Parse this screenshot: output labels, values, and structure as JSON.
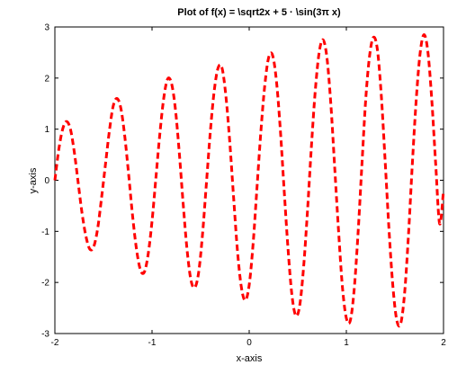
{
  "chart_data": {
    "type": "line",
    "title": "Plot of f(x) = \\sqrt2x + 5 · \\sin(3π x)",
    "xlabel": "x-axis",
    "ylabel": "y-axis",
    "xlim": [
      -2,
      2
    ],
    "ylim": [
      -3,
      3
    ],
    "x_ticks": [
      -2,
      -1,
      0,
      1,
      2
    ],
    "x_tick_labels": [
      "-2",
      "-1",
      "0",
      "1",
      "2"
    ],
    "y_ticks": [
      -3,
      -2,
      -1,
      0,
      1,
      2,
      3
    ],
    "y_tick_labels": [
      "-3",
      "-2",
      "-1",
      "0",
      "1",
      "2",
      "3"
    ],
    "grid": false,
    "legend": "none",
    "series": [
      {
        "color": "#ff0000",
        "line_style": "dashed",
        "x": [
          -2.0,
          -1.96,
          -1.92,
          -1.88,
          -1.84,
          -1.8,
          -1.76,
          -1.72,
          -1.68,
          -1.64,
          -1.6,
          -1.56,
          -1.52,
          -1.48,
          -1.44,
          -1.4,
          -1.36,
          -1.32,
          -1.28,
          -1.24,
          -1.2,
          -1.16,
          -1.12,
          -1.08,
          -1.04,
          -1.0,
          -0.96,
          -0.92,
          -0.88,
          -0.84,
          -0.8,
          -0.76,
          -0.72,
          -0.68,
          -0.64,
          -0.6,
          -0.56,
          -0.52,
          -0.48,
          -0.44,
          -0.4,
          -0.36,
          -0.32,
          -0.28,
          -0.24,
          -0.2,
          -0.16,
          -0.12,
          -0.08,
          -0.04,
          0.0,
          0.04,
          0.08,
          0.12,
          0.16,
          0.2,
          0.24,
          0.28,
          0.32,
          0.36,
          0.4,
          0.44,
          0.48,
          0.52,
          0.56,
          0.6,
          0.64,
          0.68,
          0.72,
          0.76,
          0.8,
          0.84,
          0.88,
          0.92,
          0.96,
          1.0,
          1.04,
          1.08,
          1.12,
          1.16,
          1.2,
          1.24,
          1.28,
          1.32,
          1.36,
          1.4,
          1.44,
          1.48,
          1.52,
          1.56,
          1.6,
          1.64,
          1.68,
          1.72,
          1.76,
          1.8,
          1.84,
          1.88,
          1.92,
          1.96,
          2.0
        ],
        "y": [
          0.0,
          0.6,
          1.0,
          1.15,
          1.0,
          0.55,
          -0.05,
          -0.65,
          -1.1,
          -1.35,
          -1.3,
          -0.95,
          -0.35,
          0.3,
          0.95,
          1.45,
          1.6,
          1.4,
          0.85,
          0.1,
          -0.7,
          -1.35,
          -1.75,
          -1.8,
          -1.45,
          -0.8,
          0.05,
          0.9,
          1.6,
          1.98,
          1.9,
          1.4,
          0.55,
          -0.45,
          -1.35,
          -1.95,
          -2.1,
          -1.8,
          -1.05,
          -0.05,
          0.95,
          1.75,
          2.2,
          2.2,
          1.65,
          0.75,
          -0.35,
          -1.4,
          -2.1,
          -2.35,
          -2.05,
          -1.25,
          -0.15,
          0.95,
          1.85,
          2.4,
          2.45,
          1.95,
          1.0,
          -0.2,
          -1.35,
          -2.25,
          -2.65,
          -2.45,
          -1.7,
          -0.6,
          0.65,
          1.75,
          2.5,
          2.75,
          2.4,
          1.5,
          0.25,
          -1.0,
          -2.1,
          -2.7,
          -2.75,
          -2.15,
          -1.05,
          0.3,
          1.6,
          2.45,
          2.8,
          2.55,
          1.65,
          0.35,
          -1.0,
          -2.1,
          -2.75,
          -2.8,
          -2.2,
          -1.05,
          0.35,
          1.6,
          2.5,
          2.85,
          2.5,
          1.55,
          0.3,
          -0.85,
          -0.2
        ]
      }
    ]
  }
}
